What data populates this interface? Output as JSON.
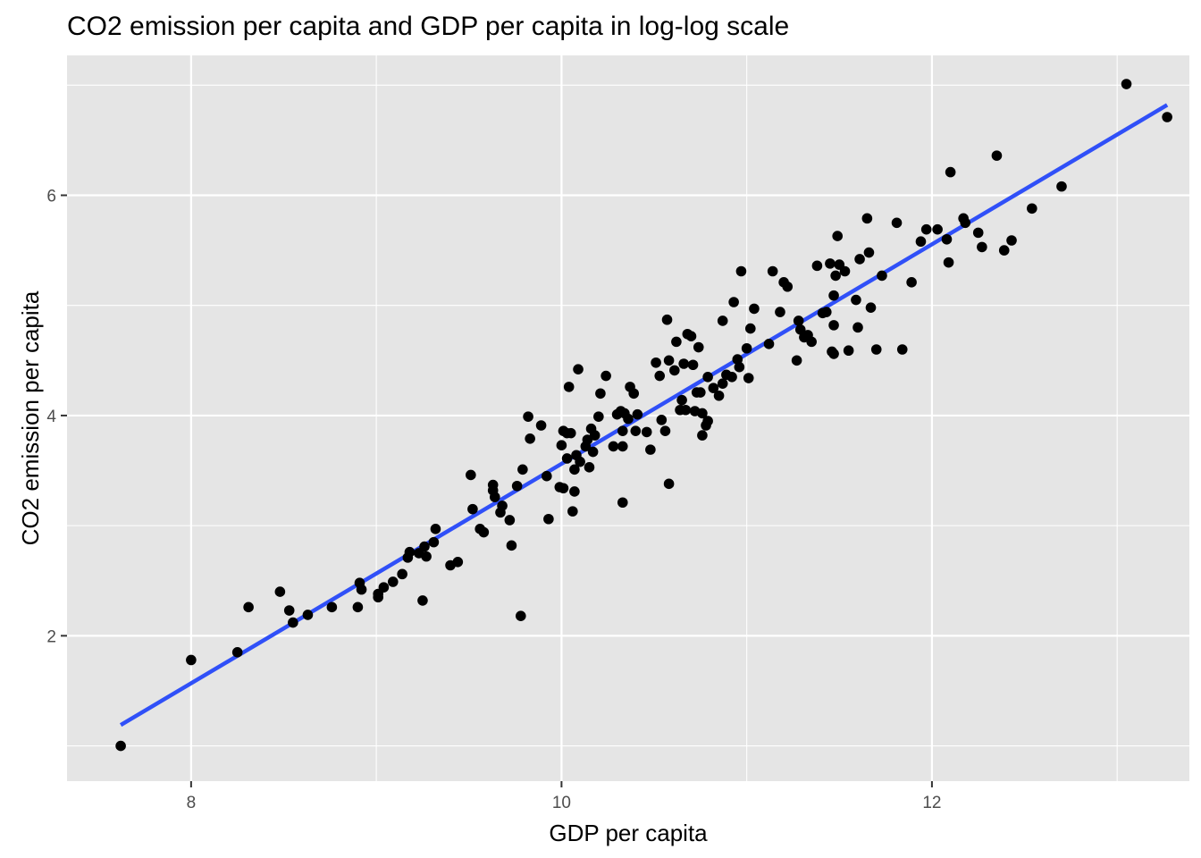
{
  "chart_data": {
    "type": "scatter",
    "title": "CO2 emission per capita and GDP per capita in log-log scale",
    "xlabel": "GDP per capita",
    "ylabel": "CO2 emission per capita",
    "xlim": [
      7.33,
      13.39
    ],
    "ylim": [
      0.68,
      7.27
    ],
    "x_ticks": [
      8,
      10,
      12
    ],
    "y_ticks": [
      2,
      4,
      6
    ],
    "grid": true,
    "legend": "none",
    "colors": {
      "panel": "#e5e5e5",
      "grid": "#ffffff",
      "points": "#000000",
      "fit_line": "#3050f8"
    },
    "fit_line": {
      "x": [
        7.62,
        13.27
      ],
      "y": [
        1.19,
        6.82
      ]
    },
    "points": [
      {
        "x": 7.62,
        "y": 1.0
      },
      {
        "x": 8.0,
        "y": 1.78
      },
      {
        "x": 8.25,
        "y": 1.85
      },
      {
        "x": 8.31,
        "y": 2.26
      },
      {
        "x": 8.48,
        "y": 2.4
      },
      {
        "x": 8.53,
        "y": 2.23
      },
      {
        "x": 8.55,
        "y": 2.12
      },
      {
        "x": 8.63,
        "y": 2.19
      },
      {
        "x": 8.76,
        "y": 2.26
      },
      {
        "x": 8.9,
        "y": 2.26
      },
      {
        "x": 8.91,
        "y": 2.48
      },
      {
        "x": 8.92,
        "y": 2.42
      },
      {
        "x": 9.01,
        "y": 2.35
      },
      {
        "x": 9.01,
        "y": 2.38
      },
      {
        "x": 9.04,
        "y": 2.44
      },
      {
        "x": 9.09,
        "y": 2.49
      },
      {
        "x": 9.14,
        "y": 2.56
      },
      {
        "x": 9.17,
        "y": 2.71
      },
      {
        "x": 9.18,
        "y": 2.76
      },
      {
        "x": 9.23,
        "y": 2.75
      },
      {
        "x": 9.26,
        "y": 2.81
      },
      {
        "x": 9.27,
        "y": 2.72
      },
      {
        "x": 9.25,
        "y": 2.32
      },
      {
        "x": 9.31,
        "y": 2.85
      },
      {
        "x": 9.32,
        "y": 2.97
      },
      {
        "x": 9.4,
        "y": 2.64
      },
      {
        "x": 9.44,
        "y": 2.67
      },
      {
        "x": 9.51,
        "y": 3.46
      },
      {
        "x": 9.52,
        "y": 3.15
      },
      {
        "x": 9.56,
        "y": 2.97
      },
      {
        "x": 9.58,
        "y": 2.94
      },
      {
        "x": 9.63,
        "y": 3.32
      },
      {
        "x": 9.63,
        "y": 3.37
      },
      {
        "x": 9.64,
        "y": 3.26
      },
      {
        "x": 9.67,
        "y": 3.12
      },
      {
        "x": 9.68,
        "y": 3.18
      },
      {
        "x": 9.72,
        "y": 3.05
      },
      {
        "x": 9.73,
        "y": 2.82
      },
      {
        "x": 9.76,
        "y": 3.36
      },
      {
        "x": 9.79,
        "y": 3.51
      },
      {
        "x": 9.82,
        "y": 3.99
      },
      {
        "x": 9.83,
        "y": 3.79
      },
      {
        "x": 9.78,
        "y": 2.18
      },
      {
        "x": 9.89,
        "y": 3.91
      },
      {
        "x": 9.92,
        "y": 3.45
      },
      {
        "x": 9.93,
        "y": 3.06
      },
      {
        "x": 9.99,
        "y": 3.35
      },
      {
        "x": 10.0,
        "y": 3.73
      },
      {
        "x": 10.01,
        "y": 3.86
      },
      {
        "x": 10.01,
        "y": 3.34
      },
      {
        "x": 10.03,
        "y": 3.84
      },
      {
        "x": 10.03,
        "y": 3.61
      },
      {
        "x": 10.04,
        "y": 4.26
      },
      {
        "x": 10.05,
        "y": 3.84
      },
      {
        "x": 10.07,
        "y": 3.51
      },
      {
        "x": 10.06,
        "y": 3.13
      },
      {
        "x": 10.07,
        "y": 3.31
      },
      {
        "x": 10.08,
        "y": 3.64
      },
      {
        "x": 10.09,
        "y": 4.42
      },
      {
        "x": 10.1,
        "y": 3.58
      },
      {
        "x": 10.13,
        "y": 3.72
      },
      {
        "x": 10.14,
        "y": 3.78
      },
      {
        "x": 10.15,
        "y": 3.53
      },
      {
        "x": 10.16,
        "y": 3.88
      },
      {
        "x": 10.17,
        "y": 3.67
      },
      {
        "x": 10.18,
        "y": 3.82
      },
      {
        "x": 10.2,
        "y": 3.99
      },
      {
        "x": 10.21,
        "y": 4.2
      },
      {
        "x": 10.24,
        "y": 4.36
      },
      {
        "x": 10.28,
        "y": 3.72
      },
      {
        "x": 10.3,
        "y": 4.01
      },
      {
        "x": 10.32,
        "y": 4.04
      },
      {
        "x": 10.33,
        "y": 3.86
      },
      {
        "x": 10.33,
        "y": 3.72
      },
      {
        "x": 10.33,
        "y": 3.21
      },
      {
        "x": 10.34,
        "y": 4.02
      },
      {
        "x": 10.36,
        "y": 3.97
      },
      {
        "x": 10.37,
        "y": 4.26
      },
      {
        "x": 10.39,
        "y": 4.2
      },
      {
        "x": 10.4,
        "y": 3.86
      },
      {
        "x": 10.41,
        "y": 4.01
      },
      {
        "x": 10.46,
        "y": 3.85
      },
      {
        "x": 10.48,
        "y": 3.69
      },
      {
        "x": 10.51,
        "y": 4.48
      },
      {
        "x": 10.53,
        "y": 4.36
      },
      {
        "x": 10.54,
        "y": 3.96
      },
      {
        "x": 10.56,
        "y": 3.86
      },
      {
        "x": 10.57,
        "y": 4.87
      },
      {
        "x": 10.58,
        "y": 4.5
      },
      {
        "x": 10.58,
        "y": 3.38
      },
      {
        "x": 10.61,
        "y": 4.41
      },
      {
        "x": 10.62,
        "y": 4.67
      },
      {
        "x": 10.64,
        "y": 4.05
      },
      {
        "x": 10.65,
        "y": 4.14
      },
      {
        "x": 10.66,
        "y": 4.47
      },
      {
        "x": 10.67,
        "y": 4.05
      },
      {
        "x": 10.68,
        "y": 4.74
      },
      {
        "x": 10.7,
        "y": 4.72
      },
      {
        "x": 10.71,
        "y": 4.46
      },
      {
        "x": 10.72,
        "y": 4.04
      },
      {
        "x": 10.73,
        "y": 4.21
      },
      {
        "x": 10.74,
        "y": 4.62
      },
      {
        "x": 10.75,
        "y": 4.21
      },
      {
        "x": 10.76,
        "y": 4.02
      },
      {
        "x": 10.76,
        "y": 3.82
      },
      {
        "x": 10.78,
        "y": 3.91
      },
      {
        "x": 10.79,
        "y": 4.35
      },
      {
        "x": 10.79,
        "y": 3.95
      },
      {
        "x": 10.82,
        "y": 4.25
      },
      {
        "x": 10.85,
        "y": 4.18
      },
      {
        "x": 10.87,
        "y": 4.29
      },
      {
        "x": 10.87,
        "y": 4.86
      },
      {
        "x": 10.89,
        "y": 4.37
      },
      {
        "x": 10.92,
        "y": 4.35
      },
      {
        "x": 10.93,
        "y": 5.03
      },
      {
        "x": 10.95,
        "y": 4.51
      },
      {
        "x": 10.96,
        "y": 4.44
      },
      {
        "x": 10.97,
        "y": 5.31
      },
      {
        "x": 11.0,
        "y": 4.61
      },
      {
        "x": 11.01,
        "y": 4.34
      },
      {
        "x": 11.02,
        "y": 4.79
      },
      {
        "x": 11.04,
        "y": 4.97
      },
      {
        "x": 11.12,
        "y": 4.65
      },
      {
        "x": 11.14,
        "y": 5.31
      },
      {
        "x": 11.18,
        "y": 4.94
      },
      {
        "x": 11.2,
        "y": 5.21
      },
      {
        "x": 11.22,
        "y": 5.17
      },
      {
        "x": 11.27,
        "y": 4.5
      },
      {
        "x": 11.28,
        "y": 4.86
      },
      {
        "x": 11.29,
        "y": 4.78
      },
      {
        "x": 11.31,
        "y": 4.71
      },
      {
        "x": 11.33,
        "y": 4.73
      },
      {
        "x": 11.35,
        "y": 4.67
      },
      {
        "x": 11.38,
        "y": 5.36
      },
      {
        "x": 11.41,
        "y": 4.93
      },
      {
        "x": 11.43,
        "y": 4.94
      },
      {
        "x": 11.45,
        "y": 5.38
      },
      {
        "x": 11.46,
        "y": 4.58
      },
      {
        "x": 11.47,
        "y": 5.09
      },
      {
        "x": 11.47,
        "y": 4.82
      },
      {
        "x": 11.47,
        "y": 4.56
      },
      {
        "x": 11.48,
        "y": 5.27
      },
      {
        "x": 11.49,
        "y": 5.63
      },
      {
        "x": 11.5,
        "y": 5.37
      },
      {
        "x": 11.53,
        "y": 5.31
      },
      {
        "x": 11.55,
        "y": 4.59
      },
      {
        "x": 11.59,
        "y": 5.05
      },
      {
        "x": 11.6,
        "y": 4.8
      },
      {
        "x": 11.61,
        "y": 5.42
      },
      {
        "x": 11.65,
        "y": 5.79
      },
      {
        "x": 11.66,
        "y": 5.48
      },
      {
        "x": 11.67,
        "y": 4.98
      },
      {
        "x": 11.7,
        "y": 4.6
      },
      {
        "x": 11.73,
        "y": 5.27
      },
      {
        "x": 11.81,
        "y": 5.75
      },
      {
        "x": 11.84,
        "y": 4.6
      },
      {
        "x": 11.89,
        "y": 5.21
      },
      {
        "x": 11.94,
        "y": 5.58
      },
      {
        "x": 11.97,
        "y": 5.69
      },
      {
        "x": 12.03,
        "y": 5.69
      },
      {
        "x": 12.08,
        "y": 5.6
      },
      {
        "x": 12.09,
        "y": 5.39
      },
      {
        "x": 12.1,
        "y": 6.21
      },
      {
        "x": 12.17,
        "y": 5.79
      },
      {
        "x": 12.18,
        "y": 5.75
      },
      {
        "x": 12.25,
        "y": 5.66
      },
      {
        "x": 12.27,
        "y": 5.53
      },
      {
        "x": 12.35,
        "y": 6.36
      },
      {
        "x": 12.39,
        "y": 5.5
      },
      {
        "x": 12.43,
        "y": 5.59
      },
      {
        "x": 12.54,
        "y": 5.88
      },
      {
        "x": 12.7,
        "y": 6.08
      },
      {
        "x": 13.05,
        "y": 7.01
      },
      {
        "x": 13.27,
        "y": 6.71
      }
    ]
  }
}
